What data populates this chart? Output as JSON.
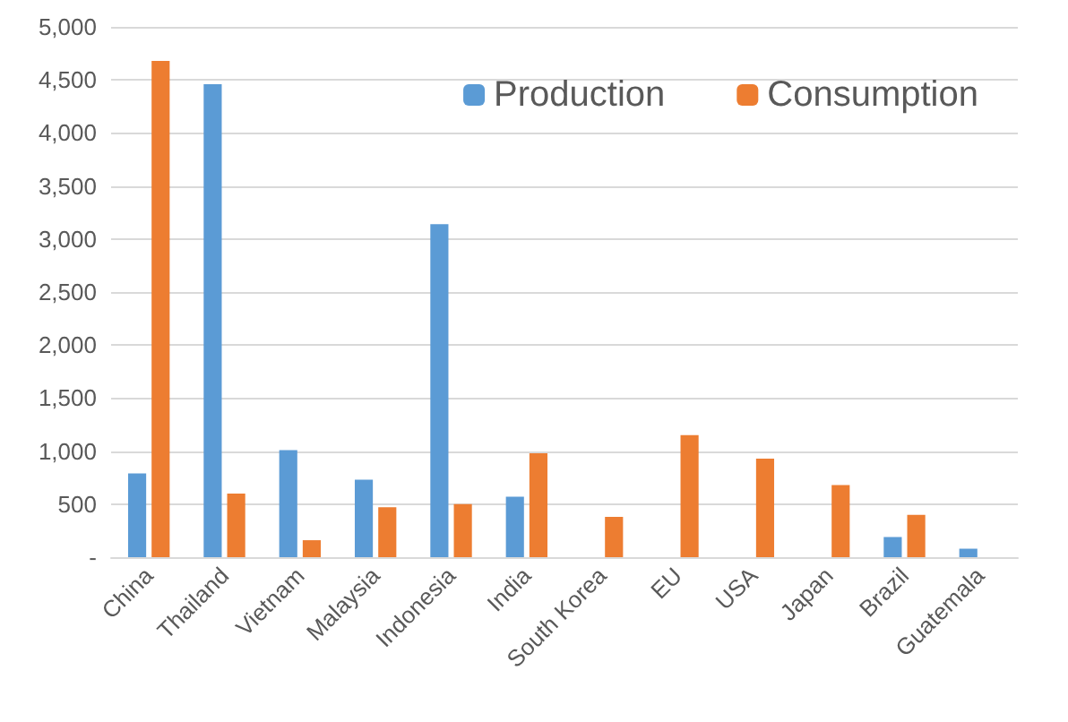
{
  "chart_data": {
    "type": "bar",
    "categories": [
      "China",
      "Thailand",
      "Vietnam",
      "Malaysia",
      "Indonesia",
      "India",
      "South Korea",
      "EU",
      "USA",
      "Japan",
      "Brazil",
      "Guatemala"
    ],
    "series": [
      {
        "name": "Production",
        "color": "#5b9bd5",
        "values": [
          790,
          4460,
          1010,
          730,
          3140,
          570,
          null,
          null,
          null,
          null,
          190,
          80
        ]
      },
      {
        "name": "Consumption",
        "color": "#ed7d31",
        "values": [
          4680,
          600,
          160,
          470,
          500,
          980,
          380,
          1150,
          930,
          680,
          400,
          null
        ]
      }
    ],
    "ylim": [
      0,
      5000
    ],
    "yticks": [
      {
        "value": 0,
        "label": "-"
      },
      500,
      {
        "value": 1000,
        "label": "1,000"
      },
      {
        "value": 1500,
        "label": "1,500"
      },
      {
        "value": 2000,
        "label": "2,000"
      },
      {
        "value": 2500,
        "label": "2,500"
      },
      {
        "value": 3000,
        "label": "3,000"
      },
      {
        "value": 3500,
        "label": "3,500"
      },
      {
        "value": 4000,
        "label": "4,000"
      },
      {
        "value": 4500,
        "label": "4,500"
      },
      {
        "value": 5000,
        "label": "5,000"
      }
    ],
    "grid": "y",
    "legend": "top right"
  }
}
